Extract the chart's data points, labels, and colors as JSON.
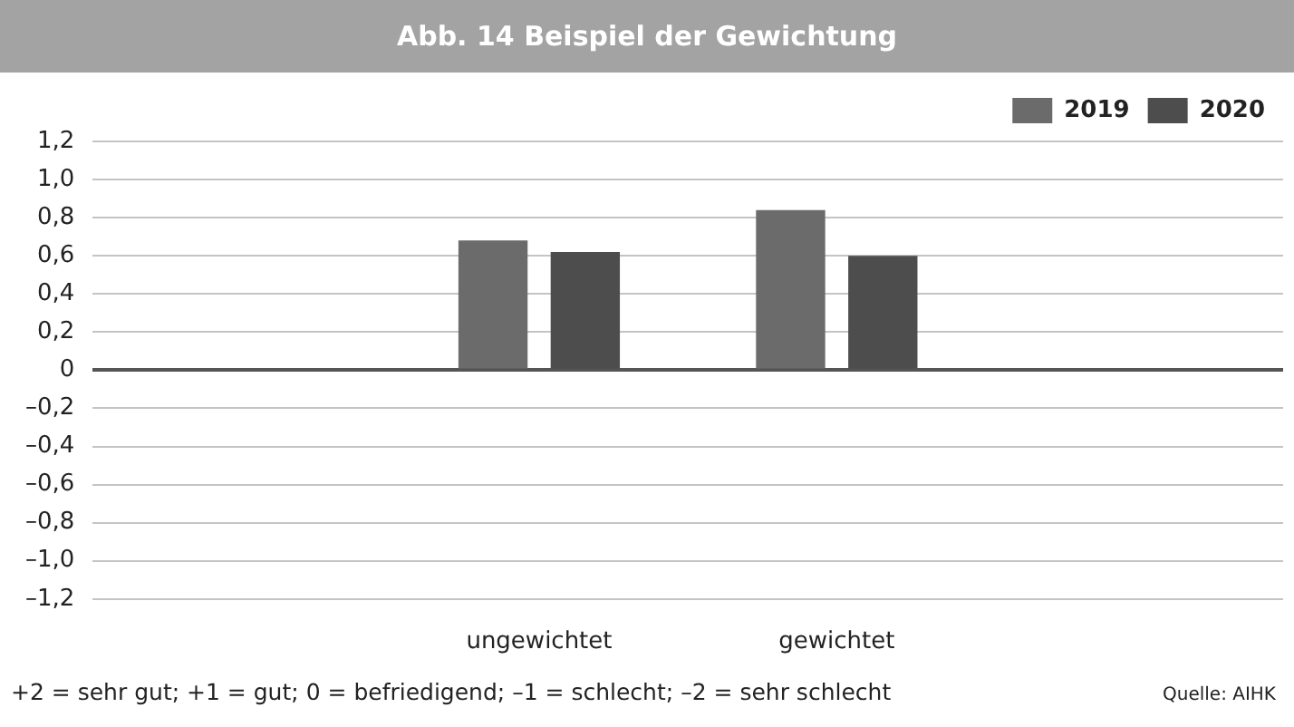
{
  "chart_data": {
    "type": "bar",
    "title": "Abb. 14 Beispiel der Gewichtung",
    "categories": [
      null,
      "ungewichtet",
      "gewichtet",
      null
    ],
    "series": [
      {
        "name": "2019",
        "color": "#6b6b6b",
        "values": [
          null,
          0.68,
          0.84,
          null
        ]
      },
      {
        "name": "2020",
        "color": "#4d4d4d",
        "values": [
          null,
          0.62,
          0.6,
          null
        ]
      }
    ],
    "ylim": [
      -1.2,
      1.2
    ],
    "yticks": [
      {
        "value": 1.2,
        "label": "1,2"
      },
      {
        "value": 1,
        "label": "1,0"
      },
      {
        "value": 0.8,
        "label": "0,8"
      },
      {
        "value": 0.6,
        "label": "0,6"
      },
      {
        "value": 0.4,
        "label": "0,4"
      },
      {
        "value": 0.2,
        "label": "0,2"
      },
      0,
      {
        "value": -0.2,
        "label": "–0,2"
      },
      {
        "value": -0.4,
        "label": "–0,4"
      },
      {
        "value": -0.6,
        "label": "–0,6"
      },
      {
        "value": -0.8,
        "label": "–0,8"
      },
      {
        "value": -1,
        "label": "–1,0"
      },
      {
        "value": -1.2,
        "label": "–1,2"
      }
    ],
    "grid": "y",
    "legend": "top right",
    "annotations": [
      "+2 = sehr gut; +1 = gut; 0 = befriedigend; –1 = schlecht; –2 = sehr schlecht",
      "Quelle: AIHK"
    ]
  }
}
